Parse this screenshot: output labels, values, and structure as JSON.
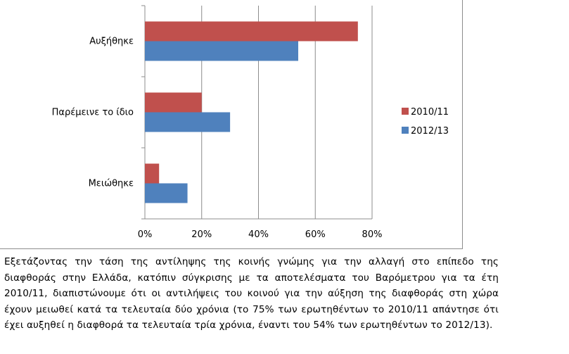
{
  "chart_data": {
    "type": "bar",
    "orientation": "horizontal",
    "categories": [
      "Αυξήθηκε",
      "Παρέμεινε το ίδιο",
      "Μειώθηκε"
    ],
    "series": [
      {
        "name": "2010/11",
        "values": [
          75,
          20,
          5
        ],
        "color": "#c0504d"
      },
      {
        "name": "2012/13",
        "values": [
          54,
          30,
          15
        ],
        "color": "#4f81bd"
      }
    ],
    "x_ticks": [
      "0%",
      "20%",
      "40%",
      "60%",
      "80%"
    ],
    "xlim": [
      0,
      80
    ],
    "grid": true,
    "legend_position": "right"
  },
  "caption": "Εξετάζοντας την τάση της αντίληψης της κοινής γνώμης για την αλλαγή στο επίπεδο της διαφθοράς στην Ελλάδα, κατόπιν σύγκρισης με τα αποτελέσματα του Βαρόμετρου για τα έτη 2010/11, διαπιστώνουμε ότι οι αντιλήψεις του κοινού για την αύξηση της διαφθοράς στη χώρα έχουν μειωθεί κατά τα τελευταία δύο χρόνια (το 75% των ερωτηθέντων το 2010/11 απάντησε ότι έχει αυξηθεί η διαφθορά τα τελευταία τρία χρόνια, έναντι του 54% των ερωτηθέντων το 2012/13)."
}
